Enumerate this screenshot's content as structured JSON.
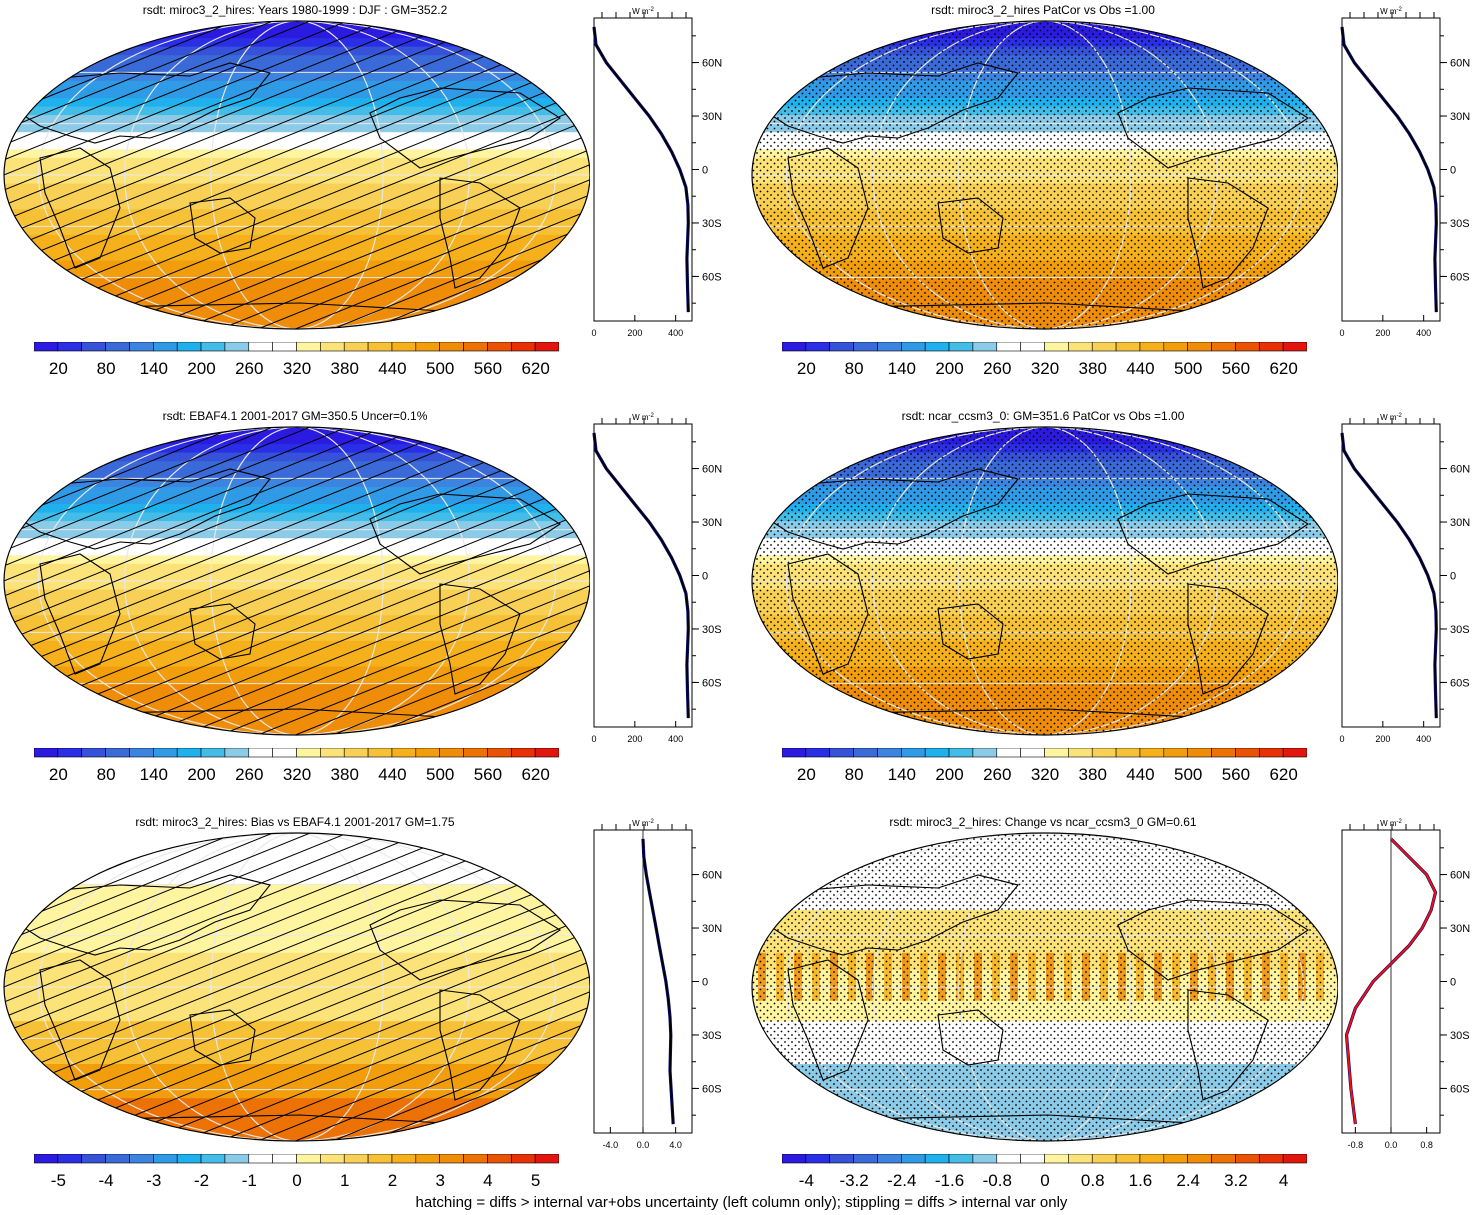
{
  "footnote": "hatching = diffs > internal var+obs uncertainty (left column only); stippling = diffs > internal var only",
  "colors": {
    "scale_main": [
      "#2b1ae0",
      "#2a2fe6",
      "#3652d8",
      "#3a6ad8",
      "#3d84e0",
      "#2f9ae6",
      "#1fb1ee",
      "#43bde8",
      "#8ccbe8",
      "#ffffff",
      "#ffffff",
      "#fff5a0",
      "#fbe37a",
      "#f8d056",
      "#f6c136",
      "#f5b01c",
      "#f29e0c",
      "#ef8c08",
      "#ec7206",
      "#ea5304",
      "#e83205",
      "#e3160f"
    ],
    "scale_diff": [
      "#2b1ae0",
      "#2a2fe6",
      "#3652d8",
      "#3a6ad8",
      "#3d84e0",
      "#2f9ae6",
      "#1fb1ee",
      "#43bde8",
      "#8ccbe8",
      "#ffffff",
      "#ffffff",
      "#fff5a0",
      "#fbe37a",
      "#f8d056",
      "#f6c136",
      "#f5b01c",
      "#f29e0c",
      "#ef8c08",
      "#ec7206",
      "#ea5304",
      "#e83205",
      "#e3160f"
    ],
    "line_model": "#000000",
    "line_obs": "#0b0b6e",
    "line_change": "#ee1111"
  },
  "zonal_lat_ticks": [
    "60N",
    "30N",
    "0",
    "30S",
    "60S"
  ],
  "zonal_units": "W m",
  "zonal_units_sup": "-2",
  "panels": [
    {
      "title": "rsdt: miroc3_2_hires: Years 1980-1999 : DJF : GM=352.2",
      "map_kind": "main",
      "overlay": "hatch",
      "zonal_x_ticks": [
        "0",
        "200",
        "400"
      ],
      "cbar_labels": [
        "20",
        "80",
        "140",
        "200",
        "260",
        "320",
        "380",
        "440",
        "500",
        "560",
        "620"
      ]
    },
    {
      "title": "rsdt: miroc3_2_hires PatCor vs Obs =1.00",
      "map_kind": "main",
      "overlay": "stipple",
      "zonal_x_ticks": [
        "0",
        "200",
        "400"
      ],
      "cbar_labels": [
        "20",
        "80",
        "140",
        "200",
        "260",
        "320",
        "380",
        "440",
        "500",
        "560",
        "620"
      ]
    },
    {
      "title": "rsdt: EBAF4.1 2001-2017 GM=350.5 Uncer=0.1%",
      "map_kind": "main",
      "overlay": "hatch",
      "zonal_x_ticks": [
        "0",
        "200",
        "400"
      ],
      "cbar_labels": [
        "20",
        "80",
        "140",
        "200",
        "260",
        "320",
        "380",
        "440",
        "500",
        "560",
        "620"
      ]
    },
    {
      "title": "rsdt: ncar_ccsm3_0: GM=351.6 PatCor vs Obs =1.00",
      "map_kind": "main",
      "overlay": "stipple",
      "zonal_x_ticks": [
        "0",
        "200",
        "400"
      ],
      "cbar_labels": [
        "20",
        "80",
        "140",
        "200",
        "260",
        "320",
        "380",
        "440",
        "500",
        "560",
        "620"
      ]
    },
    {
      "title": "rsdt: miroc3_2_hires: Bias vs EBAF4.1 2001-2017 GM=1.75",
      "map_kind": "bias",
      "overlay": "hatch",
      "zonal_x_ticks": [
        "-4.0",
        "0.0",
        "4.0"
      ],
      "cbar_labels": [
        "-5",
        "-4",
        "-3",
        "-2",
        "-1",
        "0",
        "1",
        "2",
        "3",
        "4",
        "5"
      ]
    },
    {
      "title": "rsdt: miroc3_2_hires: Change vs ncar_ccsm3_0 GM=0.61",
      "map_kind": "change",
      "overlay": "stipple",
      "zonal_x_ticks": [
        "-0.8",
        "0.0",
        "0.8"
      ],
      "cbar_labels": [
        "-4",
        "-3.2",
        "-2.4",
        "-1.6",
        "-0.8",
        "0",
        "0.8",
        "1.6",
        "2.4",
        "3.2",
        "4"
      ]
    }
  ],
  "chart_data": [
    {
      "type": "line",
      "title": "rsdt: miroc3_2_hires: Years 1980-1999 : DJF : GM=352.2",
      "xlabel": "W m-2",
      "xlim": [
        0,
        480
      ],
      "series": [
        {
          "x": [
            0,
            10,
            60,
            130,
            200,
            270,
            330,
            380,
            420,
            450,
            460,
            462,
            455,
            458,
            462
          ],
          "y": [
            80,
            70,
            60,
            50,
            40,
            30,
            20,
            10,
            0,
            -10,
            -20,
            -30,
            -50,
            -65,
            -80
          ]
        }
      ]
    },
    {
      "type": "line",
      "title": "rsdt: miroc3_2_hires PatCor vs Obs =1.00",
      "xlabel": "W m-2",
      "xlim": [
        0,
        480
      ],
      "series": [
        {
          "x": [
            0,
            10,
            60,
            130,
            200,
            270,
            330,
            380,
            420,
            450,
            460,
            462,
            455,
            458,
            462
          ],
          "y": [
            80,
            70,
            60,
            50,
            40,
            30,
            20,
            10,
            0,
            -10,
            -20,
            -30,
            -50,
            -65,
            -80
          ]
        }
      ]
    },
    {
      "type": "line",
      "title": "rsdt: EBAF4.1 2001-2017 GM=350.5 Uncer=0.1%",
      "xlabel": "W m-2",
      "xlim": [
        0,
        480
      ],
      "series": [
        {
          "x": [
            0,
            10,
            60,
            130,
            200,
            270,
            330,
            380,
            420,
            450,
            460,
            462,
            455,
            458,
            462
          ],
          "y": [
            80,
            70,
            60,
            50,
            40,
            30,
            20,
            10,
            0,
            -10,
            -20,
            -30,
            -50,
            -65,
            -80
          ]
        }
      ]
    },
    {
      "type": "line",
      "title": "rsdt: ncar_ccsm3_0: GM=351.6 PatCor vs Obs =1.00",
      "xlabel": "W m-2",
      "xlim": [
        0,
        480
      ],
      "series": [
        {
          "x": [
            0,
            10,
            60,
            130,
            200,
            270,
            330,
            380,
            420,
            450,
            460,
            462,
            455,
            458,
            462
          ],
          "y": [
            80,
            70,
            60,
            50,
            40,
            30,
            20,
            10,
            0,
            -10,
            -20,
            -30,
            -50,
            -65,
            -80
          ]
        }
      ]
    },
    {
      "type": "line",
      "title": "rsdt: miroc3_2_hires: Bias vs EBAF4.1 2001-2017 GM=1.75",
      "xlabel": "W m-2",
      "xlim": [
        -6,
        6
      ],
      "series": [
        {
          "x": [
            0.0,
            0.1,
            0.4,
            0.8,
            1.2,
            1.6,
            2.0,
            2.4,
            2.8,
            3.1,
            3.3,
            3.4,
            3.3,
            3.5,
            3.7
          ],
          "y": [
            80,
            70,
            60,
            50,
            40,
            30,
            20,
            10,
            0,
            -10,
            -20,
            -30,
            -50,
            -65,
            -80
          ]
        }
      ]
    },
    {
      "type": "line",
      "title": "rsdt: miroc3_2_hires: Change vs ncar_ccsm3_0 GM=0.61",
      "xlabel": "W m-2",
      "xlim": [
        -1.1,
        1.1
      ],
      "series": [
        {
          "x": [
            0.0,
            0.4,
            0.8,
            1.0,
            0.9,
            0.7,
            0.4,
            0.0,
            -0.4,
            -0.8,
            -1.0,
            -0.95,
            -0.9,
            -0.8
          ],
          "y": [
            80,
            70,
            60,
            50,
            40,
            30,
            20,
            10,
            0,
            -15,
            -30,
            -45,
            -60,
            -80
          ]
        }
      ]
    }
  ]
}
